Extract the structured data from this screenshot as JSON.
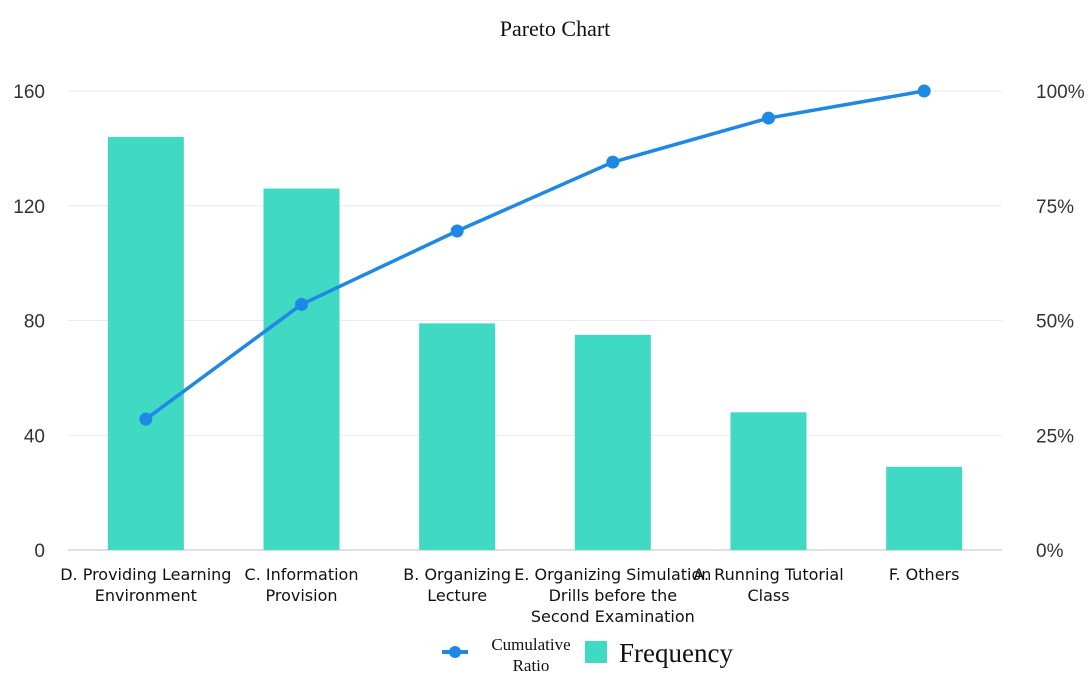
{
  "chart_data": {
    "type": "bar",
    "title": "Pareto Chart",
    "categories": [
      [
        "D.  Providing Learning",
        "Environment"
      ],
      [
        "C.  Information",
        "Provision"
      ],
      [
        "B. Organizing",
        "Lecture"
      ],
      [
        "E.  Organizing Simulation",
        "Drills before the",
        "Second Examination"
      ],
      [
        "A.  Running Tutorial",
        "Class"
      ],
      [
        "F. Others"
      ]
    ],
    "series": [
      {
        "name": "Frequency",
        "type": "bar",
        "axis": "left",
        "color": "#40d9c4",
        "values": [
          144,
          126,
          79,
          75,
          48,
          29
        ]
      },
      {
        "name": "Cumulative Ratio",
        "type": "line",
        "axis": "right",
        "color": "#1e88e5",
        "values": [
          28.5,
          53.5,
          69.5,
          84.5,
          94.1,
          100
        ]
      }
    ],
    "ylim": [
      0,
      160
    ],
    "yticks": [
      "0",
      "40",
      "80",
      "120",
      "160"
    ],
    "y2lim": [
      0,
      100
    ],
    "y2ticks": [
      "0%",
      "25%",
      "50%",
      "75%",
      "100%"
    ],
    "grid": true,
    "legend": {
      "position": "bottom-center",
      "line_label": [
        "Cumulative",
        "Ratio"
      ],
      "bar_label": "Frequency"
    }
  }
}
